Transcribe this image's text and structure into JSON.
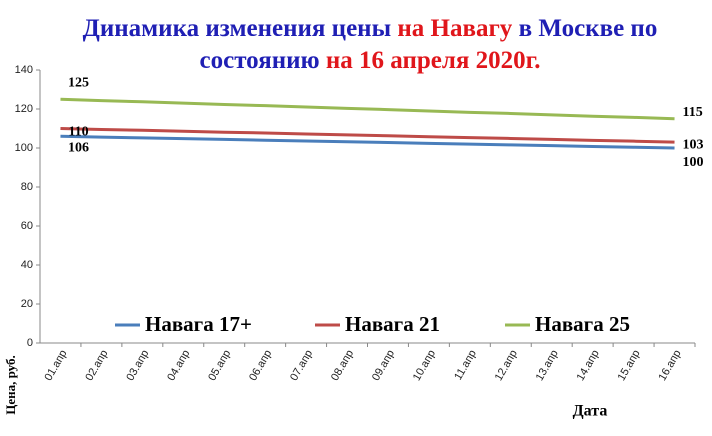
{
  "chart_data": {
    "type": "line",
    "title_lines": [
      [
        {
          "text": "Динамика изменения цены ",
          "color": "#1f1fb4"
        },
        {
          "text": "на Навагу",
          "color": "#e0161b"
        },
        {
          "text": " в Москве  по",
          "color": "#1f1fb4"
        }
      ],
      [
        {
          "text": "состоянию ",
          "color": "#1f1fb4"
        },
        {
          "text": "на 16 апреля 2020г.",
          "color": "#e0161b"
        }
      ]
    ],
    "x_label": "Дата",
    "y_label": "Цена, руб.",
    "categories": [
      "01.апр",
      "02.апр",
      "03.апр",
      "04.апр",
      "05.апр",
      "06.апр",
      "07.апр",
      "08.апр",
      "09.апр",
      "10.апр",
      "11.апр",
      "12.апр",
      "13.апр",
      "14.апр",
      "15.апр",
      "16.апр"
    ],
    "series": [
      {
        "name": "Навага 17+",
        "color": "#4a7ebb",
        "values": [
          106,
          105.6,
          105.2,
          104.8,
          104.4,
          104,
          103.6,
          103.2,
          102.8,
          102.4,
          102,
          101.6,
          101.2,
          100.8,
          100.4,
          100
        ],
        "value_labels": [
          "106",
          null,
          null,
          null,
          null,
          null,
          null,
          null,
          null,
          null,
          null,
          null,
          null,
          null,
          null,
          "100"
        ]
      },
      {
        "name": "Навага 21",
        "color": "#be4b48",
        "values": [
          110,
          109.5,
          109.1,
          108.6,
          108.1,
          107.7,
          107.2,
          106.7,
          106.3,
          105.8,
          105.3,
          104.9,
          104.4,
          103.9,
          103.5,
          103
        ],
        "value_labels": [
          "110",
          null,
          null,
          null,
          null,
          null,
          null,
          null,
          null,
          null,
          null,
          null,
          null,
          null,
          null,
          "103"
        ]
      },
      {
        "name": "Навага 25",
        "color": "#98b954",
        "values": [
          125,
          124.3,
          123.7,
          123,
          122.3,
          121.7,
          121,
          120.3,
          119.7,
          119,
          118.3,
          117.7,
          117,
          116.3,
          115.7,
          115
        ],
        "value_labels": [
          "125",
          null,
          null,
          null,
          null,
          null,
          null,
          null,
          null,
          null,
          null,
          null,
          null,
          null,
          null,
          "115"
        ]
      }
    ],
    "ylim": [
      0,
      140
    ],
    "yticks": [
      0,
      20,
      40,
      60,
      80,
      100,
      120,
      140
    ],
    "grid": false
  }
}
